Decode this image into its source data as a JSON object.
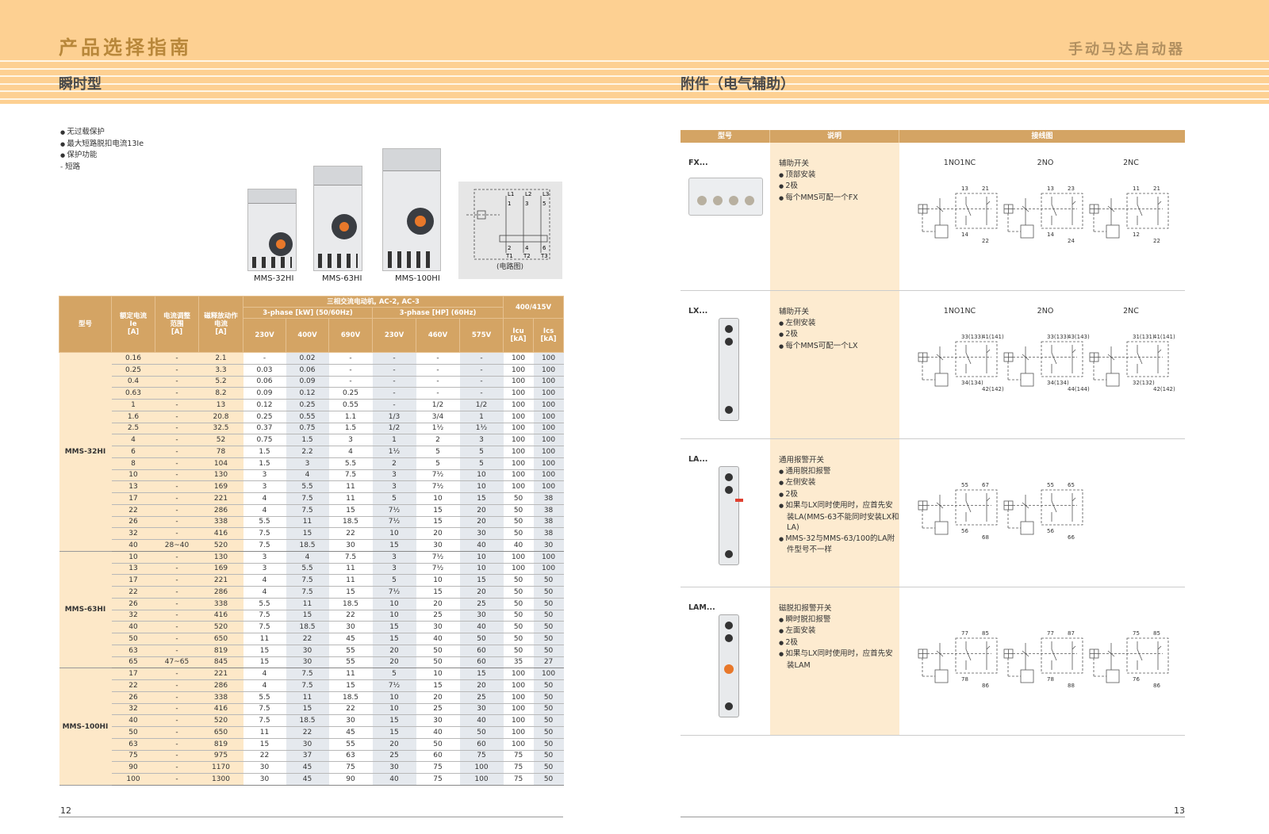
{
  "header": {
    "title": "产品选择指南",
    "right_title": "手动马达启动器",
    "left_section": "瞬时型",
    "right_section": "附件（电气辅助）"
  },
  "features": [
    "无过载保护",
    "最大短路脱扣电流13Ie",
    "保护功能",
    "短路"
  ],
  "products": [
    "MMS-32HI",
    "MMS-63HI",
    "MMS-100HI"
  ],
  "circuit": {
    "caption": "(电路图)",
    "lines": [
      "L1",
      "L2",
      "L3"
    ],
    "terms_top": [
      "1",
      "3",
      "5"
    ],
    "terms_bot": [
      "2",
      "4",
      "6"
    ],
    "outs": [
      "T1",
      "T2",
      "T3"
    ]
  },
  "spec_table": {
    "headers": {
      "model": "型号",
      "ie": [
        "额定电流",
        "Ie",
        "[A]"
      ],
      "range": [
        "电流调整",
        "范围",
        "[A]"
      ],
      "trip": [
        "磁释放动作",
        "电流",
        "[A]"
      ],
      "group": "三相交流电动机, AC-2, AC-3",
      "kw": "3-phase [kW] (50/60Hz)",
      "hp": "3-phase [HP] (60Hz)",
      "volt": "400/415V",
      "cols": [
        "230V",
        "400V",
        "690V",
        "230V",
        "460V",
        "575V"
      ],
      "icu": [
        "Icu",
        "[kA]"
      ],
      "ics": [
        "Ics",
        "[kA]"
      ]
    },
    "groups": [
      {
        "model": "MMS-32HI",
        "rows": [
          [
            "0.16",
            "-",
            "2.1",
            "-",
            "0.02",
            "-",
            "-",
            "-",
            "-",
            "100",
            "100"
          ],
          [
            "0.25",
            "-",
            "3.3",
            "0.03",
            "0.06",
            "-",
            "-",
            "-",
            "-",
            "100",
            "100"
          ],
          [
            "0.4",
            "-",
            "5.2",
            "0.06",
            "0.09",
            "-",
            "-",
            "-",
            "-",
            "100",
            "100"
          ],
          [
            "0.63",
            "-",
            "8.2",
            "0.09",
            "0.12",
            "0.25",
            "-",
            "-",
            "-",
            "100",
            "100"
          ],
          [
            "1",
            "-",
            "13",
            "0.12",
            "0.25",
            "0.55",
            "-",
            "1/2",
            "1/2",
            "100",
            "100"
          ],
          [
            "1.6",
            "-",
            "20.8",
            "0.25",
            "0.55",
            "1.1",
            "1/3",
            "3/4",
            "1",
            "100",
            "100"
          ],
          [
            "2.5",
            "-",
            "32.5",
            "0.37",
            "0.75",
            "1.5",
            "1/2",
            "1½",
            "1½",
            "100",
            "100"
          ],
          [
            "4",
            "-",
            "52",
            "0.75",
            "1.5",
            "3",
            "1",
            "2",
            "3",
            "100",
            "100"
          ],
          [
            "6",
            "-",
            "78",
            "1.5",
            "2.2",
            "4",
            "1½",
            "5",
            "5",
            "100",
            "100"
          ],
          [
            "8",
            "-",
            "104",
            "1.5",
            "3",
            "5.5",
            "2",
            "5",
            "5",
            "100",
            "100"
          ],
          [
            "10",
            "-",
            "130",
            "3",
            "4",
            "7.5",
            "3",
            "7½",
            "10",
            "100",
            "100"
          ],
          [
            "13",
            "-",
            "169",
            "3",
            "5.5",
            "11",
            "3",
            "7½",
            "10",
            "100",
            "100"
          ],
          [
            "17",
            "-",
            "221",
            "4",
            "7.5",
            "11",
            "5",
            "10",
            "15",
            "50",
            "38"
          ],
          [
            "22",
            "-",
            "286",
            "4",
            "7.5",
            "15",
            "7½",
            "15",
            "20",
            "50",
            "38"
          ],
          [
            "26",
            "-",
            "338",
            "5.5",
            "11",
            "18.5",
            "7½",
            "15",
            "20",
            "50",
            "38"
          ],
          [
            "32",
            "-",
            "416",
            "7.5",
            "15",
            "22",
            "10",
            "20",
            "30",
            "50",
            "38"
          ],
          [
            "40",
            "28~40",
            "520",
            "7.5",
            "18.5",
            "30",
            "15",
            "30",
            "40",
            "40",
            "30"
          ]
        ]
      },
      {
        "model": "MMS-63HI",
        "rows": [
          [
            "10",
            "-",
            "130",
            "3",
            "4",
            "7.5",
            "3",
            "7½",
            "10",
            "100",
            "100"
          ],
          [
            "13",
            "-",
            "169",
            "3",
            "5.5",
            "11",
            "3",
            "7½",
            "10",
            "100",
            "100"
          ],
          [
            "17",
            "-",
            "221",
            "4",
            "7.5",
            "11",
            "5",
            "10",
            "15",
            "50",
            "50"
          ],
          [
            "22",
            "-",
            "286",
            "4",
            "7.5",
            "15",
            "7½",
            "15",
            "20",
            "50",
            "50"
          ],
          [
            "26",
            "-",
            "338",
            "5.5",
            "11",
            "18.5",
            "10",
            "20",
            "25",
            "50",
            "50"
          ],
          [
            "32",
            "-",
            "416",
            "7.5",
            "15",
            "22",
            "10",
            "25",
            "30",
            "50",
            "50"
          ],
          [
            "40",
            "-",
            "520",
            "7.5",
            "18.5",
            "30",
            "15",
            "30",
            "40",
            "50",
            "50"
          ],
          [
            "50",
            "-",
            "650",
            "11",
            "22",
            "45",
            "15",
            "40",
            "50",
            "50",
            "50"
          ],
          [
            "63",
            "-",
            "819",
            "15",
            "30",
            "55",
            "20",
            "50",
            "60",
            "50",
            "50"
          ],
          [
            "65",
            "47~65",
            "845",
            "15",
            "30",
            "55",
            "20",
            "50",
            "60",
            "35",
            "27"
          ]
        ]
      },
      {
        "model": "MMS-100HI",
        "rows": [
          [
            "17",
            "-",
            "221",
            "4",
            "7.5",
            "11",
            "5",
            "10",
            "15",
            "100",
            "100"
          ],
          [
            "22",
            "-",
            "286",
            "4",
            "7.5",
            "15",
            "7½",
            "15",
            "20",
            "100",
            "50"
          ],
          [
            "26",
            "-",
            "338",
            "5.5",
            "11",
            "18.5",
            "10",
            "20",
            "25",
            "100",
            "50"
          ],
          [
            "32",
            "-",
            "416",
            "7.5",
            "15",
            "22",
            "10",
            "25",
            "30",
            "100",
            "50"
          ],
          [
            "40",
            "-",
            "520",
            "7.5",
            "18.5",
            "30",
            "15",
            "30",
            "40",
            "100",
            "50"
          ],
          [
            "50",
            "-",
            "650",
            "11",
            "22",
            "45",
            "15",
            "40",
            "50",
            "100",
            "50"
          ],
          [
            "63",
            "-",
            "819",
            "15",
            "30",
            "55",
            "20",
            "50",
            "60",
            "100",
            "50"
          ],
          [
            "75",
            "-",
            "975",
            "22",
            "37",
            "63",
            "25",
            "60",
            "75",
            "75",
            "50"
          ],
          [
            "90",
            "-",
            "1170",
            "30",
            "45",
            "75",
            "30",
            "75",
            "100",
            "75",
            "50"
          ],
          [
            "100",
            "-",
            "1300",
            "30",
            "45",
            "90",
            "40",
            "75",
            "100",
            "75",
            "50"
          ]
        ]
      }
    ]
  },
  "accessories": {
    "headers": [
      "型号",
      "说明",
      "接线图"
    ],
    "items": [
      {
        "model": "FX...",
        "title": "辅助开关",
        "bullets": [
          "顶部安装",
          "2极",
          "每个MMS可配一个FX"
        ],
        "diagrams": [
          {
            "label": "1NO1NC",
            "top": [
              "13",
              "21"
            ],
            "bottom": [
              "14",
              "22"
            ]
          },
          {
            "label": "2NO",
            "top": [
              "13",
              "23"
            ],
            "bottom": [
              "14",
              "24"
            ]
          },
          {
            "label": "2NC",
            "top": [
              "11",
              "21"
            ],
            "bottom": [
              "12",
              "22"
            ]
          }
        ]
      },
      {
        "model": "LX...",
        "title": "辅助开关",
        "bullets": [
          "左侧安装",
          "2极",
          "每个MMS可配一个LX"
        ],
        "diagrams": [
          {
            "label": "1NO1NC",
            "top": [
              "33(133)",
              "41(141)"
            ],
            "bottom": [
              "34(134)",
              "42(142)"
            ]
          },
          {
            "label": "2NO",
            "top": [
              "33(133)",
              "43(143)"
            ],
            "bottom": [
              "34(134)",
              "44(144)"
            ]
          },
          {
            "label": "2NC",
            "top": [
              "31(131)",
              "41(141)"
            ],
            "bottom": [
              "32(132)",
              "42(142)"
            ]
          }
        ]
      },
      {
        "model": "LA...",
        "title": "通用报警开关",
        "bullets": [
          "通用脱扣报警",
          "左侧安装",
          "2极",
          "如果与LX同时使用时，应首先安装LA(MMS-63不能同时安装LX和LA)",
          "MMS-32与MMS-63/100的LA附件型号不一样"
        ],
        "diagrams": [
          {
            "label": "",
            "top": [
              "55",
              "67"
            ],
            "bottom": [
              "56",
              "68"
            ]
          },
          {
            "label": "",
            "top": [
              "55",
              "65"
            ],
            "bottom": [
              "56",
              "66"
            ]
          }
        ]
      },
      {
        "model": "LAM...",
        "title": "磁脱扣报警开关",
        "bullets": [
          "瞬时脱扣报警",
          "左面安装",
          "2极",
          "如果与LX同时使用时，应首先安装LAM"
        ],
        "diagrams": [
          {
            "label": "",
            "top": [
              "77",
              "85"
            ],
            "bottom": [
              "78",
              "86"
            ]
          },
          {
            "label": "",
            "top": [
              "77",
              "87"
            ],
            "bottom": [
              "78",
              "88"
            ]
          },
          {
            "label": "",
            "top": [
              "75",
              "85"
            ],
            "bottom": [
              "76",
              "86"
            ]
          }
        ]
      }
    ]
  },
  "pages": {
    "left": "12",
    "right": "13"
  },
  "colors": {
    "band": "#fdd092",
    "header_cell": "#d4a464",
    "title": "#b8873a",
    "peach": "#fde8c8",
    "grey_col": "#e5e9ee"
  }
}
